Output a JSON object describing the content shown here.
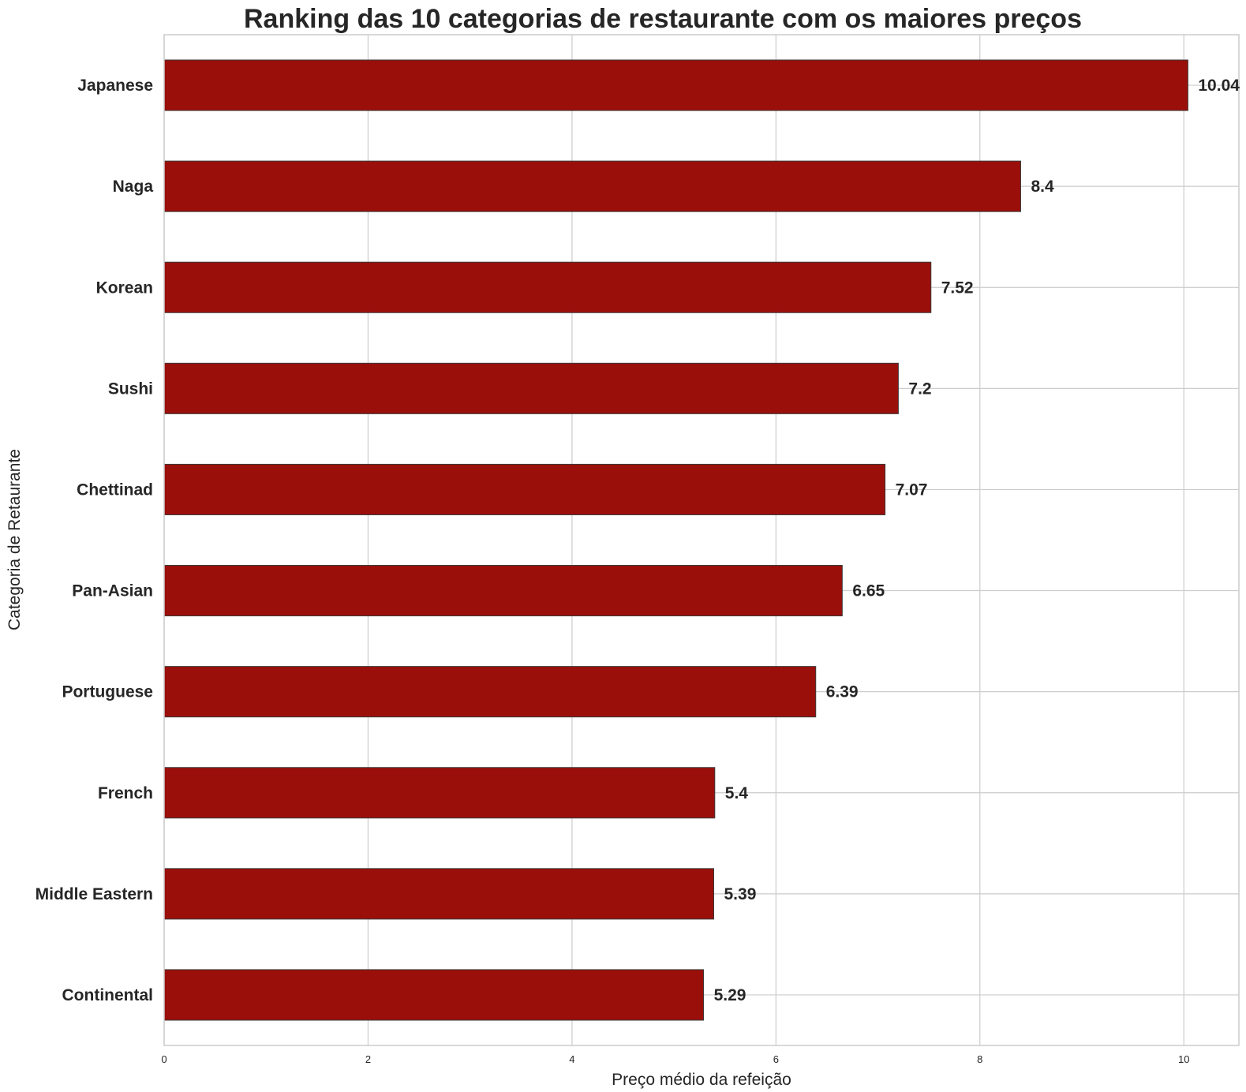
{
  "chart_data": {
    "type": "bar",
    "orientation": "horizontal",
    "title": "Ranking das 10 categorias de restaurante com os maiores preços",
    "xlabel": "Preço médio da refeição",
    "ylabel": "Categoria de Retaurante",
    "categories": [
      "Japanese",
      "Naga",
      "Korean",
      "Sushi",
      "Chettinad",
      "Pan-Asian",
      "Portuguese",
      "French",
      "Middle Eastern",
      "Continental"
    ],
    "values": [
      10.04,
      8.4,
      7.52,
      7.2,
      7.07,
      6.65,
      6.39,
      5.4,
      5.39,
      5.29
    ],
    "value_labels": [
      "10.04",
      "8.4",
      "7.52",
      "7.2",
      "7.07",
      "6.65",
      "6.39",
      "5.4",
      "5.39",
      "5.29"
    ],
    "xlim": [
      0,
      10.54
    ],
    "xticks": [
      0,
      2,
      4,
      6,
      8,
      10
    ],
    "xtick_labels": [
      "0",
      "2",
      "4",
      "6",
      "8",
      "10"
    ],
    "grid": true,
    "bar_color": "#9b0f0b",
    "edge_color": "#3a3a3a"
  }
}
